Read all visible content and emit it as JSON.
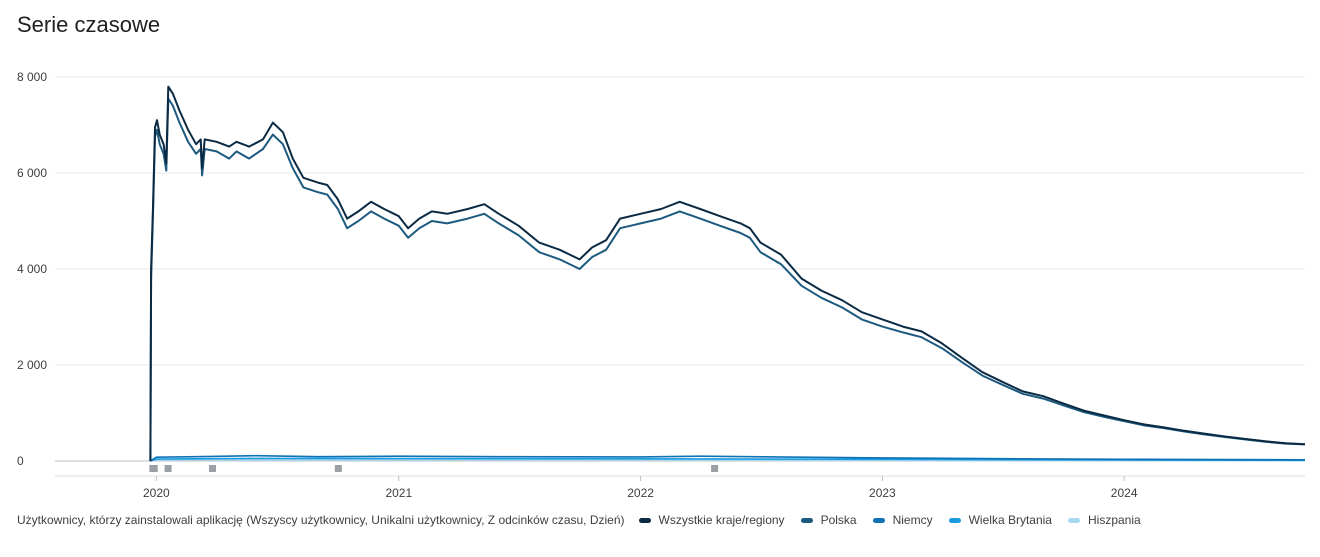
{
  "page": {
    "title": "Serie czasowe"
  },
  "chart_data": {
    "type": "line",
    "title": "Serie czasowe",
    "description": "Użytkownicy, którzy zainstalowali aplikację (Wszyscy użytkownicy, Unikalni użytkownicy, Z odcinków czasu, Dzień)",
    "xlim": [
      "2019-08-01",
      "2024-09-30"
    ],
    "ylim": [
      0,
      8000
    ],
    "yticks": [
      0,
      2000,
      4000,
      6000,
      8000
    ],
    "ytick_labels": [
      "0",
      "2 000",
      "4 000",
      "6 000",
      "8 000"
    ],
    "xticks": [
      "2020-01-01",
      "2021-01-01",
      "2022-01-01",
      "2023-01-01",
      "2024-01-01"
    ],
    "xtick_labels": [
      "2020",
      "2021",
      "2022",
      "2023",
      "2024"
    ],
    "grid": true,
    "legend": "bottom",
    "series": [
      {
        "name": "Wszystkie kraje/regiony",
        "color": "#0b2a43",
        "points": [
          [
            "2019-12-23",
            0
          ],
          [
            "2019-12-24",
            4000
          ],
          [
            "2019-12-27",
            5300
          ],
          [
            "2019-12-30",
            6950
          ],
          [
            "2020-01-02",
            7100
          ],
          [
            "2020-01-06",
            6800
          ],
          [
            "2020-01-12",
            6600
          ],
          [
            "2020-01-16",
            6200
          ],
          [
            "2020-01-19",
            7800
          ],
          [
            "2020-01-26",
            7650
          ],
          [
            "2020-02-05",
            7300
          ],
          [
            "2020-02-18",
            6900
          ],
          [
            "2020-03-01",
            6600
          ],
          [
            "2020-03-08",
            6700
          ],
          [
            "2020-03-10",
            6100
          ],
          [
            "2020-03-14",
            6700
          ],
          [
            "2020-04-01",
            6650
          ],
          [
            "2020-04-20",
            6550
          ],
          [
            "2020-05-01",
            6650
          ],
          [
            "2020-05-20",
            6550
          ],
          [
            "2020-06-10",
            6700
          ],
          [
            "2020-06-25",
            7050
          ],
          [
            "2020-07-10",
            6850
          ],
          [
            "2020-07-25",
            6300
          ],
          [
            "2020-08-10",
            5900
          ],
          [
            "2020-09-01",
            5800
          ],
          [
            "2020-09-15",
            5750
          ],
          [
            "2020-10-01",
            5450
          ],
          [
            "2020-10-15",
            5050
          ],
          [
            "2020-11-01",
            5200
          ],
          [
            "2020-11-20",
            5400
          ],
          [
            "2020-12-10",
            5250
          ],
          [
            "2021-01-01",
            5100
          ],
          [
            "2021-01-15",
            4850
          ],
          [
            "2021-02-01",
            5050
          ],
          [
            "2021-02-20",
            5200
          ],
          [
            "2021-03-15",
            5150
          ],
          [
            "2021-04-15",
            5250
          ],
          [
            "2021-05-10",
            5350
          ],
          [
            "2021-06-01",
            5150
          ],
          [
            "2021-07-01",
            4900
          ],
          [
            "2021-08-01",
            4550
          ],
          [
            "2021-09-01",
            4400
          ],
          [
            "2021-10-01",
            4200
          ],
          [
            "2021-10-20",
            4450
          ],
          [
            "2021-11-10",
            4600
          ],
          [
            "2021-12-01",
            5050
          ],
          [
            "2022-01-01",
            5150
          ],
          [
            "2022-02-01",
            5250
          ],
          [
            "2022-03-01",
            5400
          ],
          [
            "2022-04-01",
            5250
          ],
          [
            "2022-05-01",
            5100
          ],
          [
            "2022-06-01",
            4950
          ],
          [
            "2022-06-15",
            4850
          ],
          [
            "2022-07-01",
            4550
          ],
          [
            "2022-08-01",
            4300
          ],
          [
            "2022-09-01",
            3800
          ],
          [
            "2022-10-01",
            3550
          ],
          [
            "2022-11-01",
            3350
          ],
          [
            "2022-12-01",
            3100
          ],
          [
            "2023-01-01",
            2950
          ],
          [
            "2023-02-01",
            2800
          ],
          [
            "2023-03-01",
            2700
          ],
          [
            "2023-04-01",
            2450
          ],
          [
            "2023-05-01",
            2150
          ],
          [
            "2023-06-01",
            1850
          ],
          [
            "2023-07-01",
            1650
          ],
          [
            "2023-08-01",
            1450
          ],
          [
            "2023-09-01",
            1350
          ],
          [
            "2023-10-01",
            1200
          ],
          [
            "2023-11-01",
            1050
          ],
          [
            "2023-12-01",
            950
          ],
          [
            "2024-01-01",
            850
          ],
          [
            "2024-02-01",
            760
          ],
          [
            "2024-03-01",
            700
          ],
          [
            "2024-04-01",
            630
          ],
          [
            "2024-05-01",
            570
          ],
          [
            "2024-06-01",
            510
          ],
          [
            "2024-07-01",
            460
          ],
          [
            "2024-08-01",
            410
          ],
          [
            "2024-09-01",
            370
          ],
          [
            "2024-09-30",
            350
          ]
        ]
      },
      {
        "name": "Polska",
        "color": "#1d5a80",
        "points": [
          [
            "2019-12-23",
            0
          ],
          [
            "2019-12-24",
            3800
          ],
          [
            "2019-12-27",
            5150
          ],
          [
            "2019-12-30",
            6750
          ],
          [
            "2020-01-02",
            6900
          ],
          [
            "2020-01-06",
            6600
          ],
          [
            "2020-01-12",
            6400
          ],
          [
            "2020-01-16",
            6050
          ],
          [
            "2020-01-19",
            7550
          ],
          [
            "2020-01-26",
            7400
          ],
          [
            "2020-02-05",
            7050
          ],
          [
            "2020-02-18",
            6650
          ],
          [
            "2020-03-01",
            6400
          ],
          [
            "2020-03-08",
            6500
          ],
          [
            "2020-03-10",
            5950
          ],
          [
            "2020-03-14",
            6500
          ],
          [
            "2020-04-01",
            6450
          ],
          [
            "2020-04-20",
            6300
          ],
          [
            "2020-05-01",
            6450
          ],
          [
            "2020-05-20",
            6300
          ],
          [
            "2020-06-10",
            6500
          ],
          [
            "2020-06-25",
            6800
          ],
          [
            "2020-07-10",
            6600
          ],
          [
            "2020-07-25",
            6100
          ],
          [
            "2020-08-10",
            5700
          ],
          [
            "2020-09-01",
            5600
          ],
          [
            "2020-09-15",
            5550
          ],
          [
            "2020-10-01",
            5250
          ],
          [
            "2020-10-15",
            4850
          ],
          [
            "2020-11-01",
            5000
          ],
          [
            "2020-11-20",
            5200
          ],
          [
            "2020-12-10",
            5050
          ],
          [
            "2021-01-01",
            4900
          ],
          [
            "2021-01-15",
            4650
          ],
          [
            "2021-02-01",
            4850
          ],
          [
            "2021-02-20",
            5000
          ],
          [
            "2021-03-15",
            4950
          ],
          [
            "2021-04-15",
            5050
          ],
          [
            "2021-05-10",
            5150
          ],
          [
            "2021-06-01",
            4950
          ],
          [
            "2021-07-01",
            4700
          ],
          [
            "2021-08-01",
            4350
          ],
          [
            "2021-09-01",
            4200
          ],
          [
            "2021-10-01",
            4000
          ],
          [
            "2021-10-20",
            4250
          ],
          [
            "2021-11-10",
            4400
          ],
          [
            "2021-12-01",
            4850
          ],
          [
            "2022-01-01",
            4950
          ],
          [
            "2022-02-01",
            5050
          ],
          [
            "2022-03-01",
            5200
          ],
          [
            "2022-04-01",
            5050
          ],
          [
            "2022-05-01",
            4900
          ],
          [
            "2022-06-01",
            4750
          ],
          [
            "2022-06-15",
            4650
          ],
          [
            "2022-07-01",
            4350
          ],
          [
            "2022-08-01",
            4100
          ],
          [
            "2022-09-01",
            3650
          ],
          [
            "2022-10-01",
            3400
          ],
          [
            "2022-11-01",
            3200
          ],
          [
            "2022-12-01",
            2950
          ],
          [
            "2023-01-01",
            2800
          ],
          [
            "2023-02-01",
            2680
          ],
          [
            "2023-03-01",
            2580
          ],
          [
            "2023-04-01",
            2350
          ],
          [
            "2023-05-01",
            2060
          ],
          [
            "2023-06-01",
            1780
          ],
          [
            "2023-07-01",
            1590
          ],
          [
            "2023-08-01",
            1400
          ],
          [
            "2023-09-01",
            1300
          ],
          [
            "2023-10-01",
            1160
          ],
          [
            "2023-11-01",
            1020
          ],
          [
            "2023-12-01",
            920
          ],
          [
            "2024-01-01",
            830
          ],
          [
            "2024-02-01",
            740
          ],
          [
            "2024-03-01",
            685
          ],
          [
            "2024-04-01",
            615
          ],
          [
            "2024-05-01",
            555
          ],
          [
            "2024-06-01",
            500
          ],
          [
            "2024-07-01",
            450
          ],
          [
            "2024-08-01",
            400
          ],
          [
            "2024-09-01",
            362
          ],
          [
            "2024-09-30",
            345
          ]
        ]
      },
      {
        "name": "Niemcy",
        "color": "#0f72b5",
        "points": [
          [
            "2019-12-23",
            0
          ],
          [
            "2020-01-01",
            80
          ],
          [
            "2020-03-01",
            90
          ],
          [
            "2020-06-01",
            110
          ],
          [
            "2020-09-01",
            90
          ],
          [
            "2021-01-01",
            100
          ],
          [
            "2021-06-01",
            90
          ],
          [
            "2022-01-01",
            85
          ],
          [
            "2022-04-01",
            100
          ],
          [
            "2022-09-01",
            80
          ],
          [
            "2023-01-01",
            65
          ],
          [
            "2023-06-01",
            50
          ],
          [
            "2024-01-01",
            35
          ],
          [
            "2024-09-30",
            25
          ]
        ]
      },
      {
        "name": "Wielka Brytania",
        "color": "#1a9be0",
        "points": [
          [
            "2019-12-23",
            0
          ],
          [
            "2020-01-01",
            40
          ],
          [
            "2020-06-01",
            55
          ],
          [
            "2021-01-01",
            50
          ],
          [
            "2022-01-01",
            45
          ],
          [
            "2023-01-01",
            35
          ],
          [
            "2024-01-01",
            20
          ],
          [
            "2024-09-30",
            15
          ]
        ]
      },
      {
        "name": "Hiszpania",
        "color": "#a7d8f2",
        "points": [
          [
            "2019-12-23",
            0
          ],
          [
            "2020-01-01",
            20
          ],
          [
            "2021-01-01",
            25
          ],
          [
            "2022-01-01",
            20
          ],
          [
            "2023-01-01",
            15
          ],
          [
            "2024-01-01",
            10
          ],
          [
            "2024-09-30",
            8
          ]
        ]
      }
    ],
    "annotations": [
      "2019-12-26",
      "2019-12-28",
      "2020-01-18",
      "2020-03-25",
      "2020-10-01",
      "2022-04-22"
    ]
  }
}
